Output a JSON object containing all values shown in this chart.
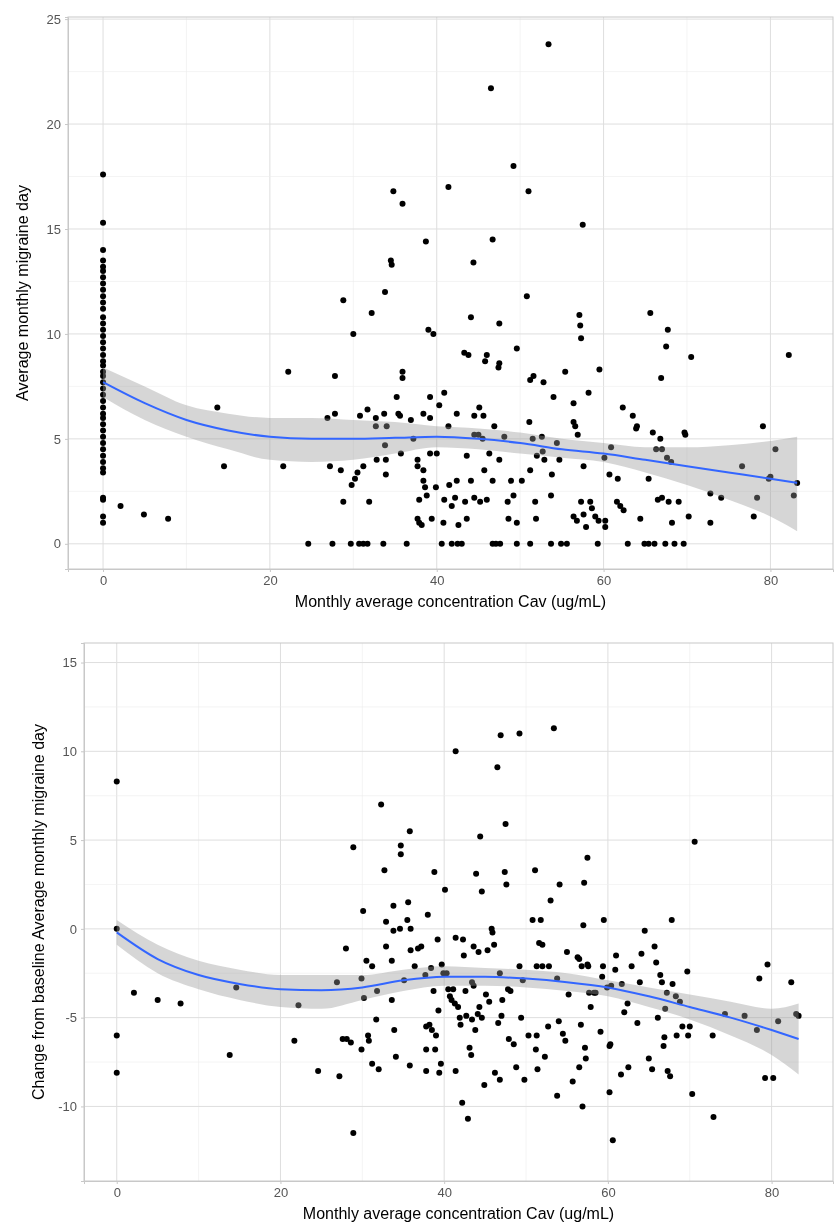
{
  "chart_data": [
    {
      "type": "scatter",
      "xlabel": "Monthly average concentration Cav (ug/mL)",
      "ylabel": "Average monthly migraine day",
      "xlim": [
        -4.2,
        87.5
      ],
      "ylim": [
        -1.2,
        25.1
      ],
      "xticks": [
        0,
        20,
        40,
        60,
        80
      ],
      "yticks": [
        0,
        5,
        10,
        15,
        20,
        25
      ],
      "grid": true,
      "series": [
        {
          "marker": "circle",
          "color": "#000000",
          "x": [
            0,
            0,
            0,
            0,
            0,
            0,
            0,
            0,
            0,
            0,
            0,
            0,
            0,
            0,
            0,
            0,
            0,
            0,
            0,
            0,
            0,
            0,
            0,
            0,
            0,
            0,
            0,
            0,
            0,
            0,
            0,
            0,
            0,
            0,
            0,
            0,
            0,
            0,
            0,
            0,
            0,
            0,
            0,
            2.1,
            4.9,
            7.8,
            13.7,
            14.5,
            21.6,
            22.2,
            24.6,
            26.9,
            27.2,
            27.5,
            27.8,
            27.8,
            28.5,
            28.8,
            28.8,
            29.7,
            29.8,
            30.0,
            30.2,
            30.5,
            30.7,
            31.2,
            31.7,
            30.8,
            31.2,
            31.7,
            31.9,
            32.2,
            32.7,
            32.7,
            32.8,
            33.6,
            33.8,
            33.7,
            33.8,
            33.9,
            33.9,
            34.0,
            34.5,
            34.6,
            34.8,
            35.2,
            35.4,
            35.6,
            35.7,
            35.9,
            35.9,
            35.9,
            36.4,
            36.9,
            37.2,
            37.7,
            37.7,
            37.9,
            37.7,
            37.9,
            38.2,
            38.4,
            38.4,
            38.4,
            38.6,
            38.8,
            38.7,
            39.0,
            39.6,
            39.2,
            39.2,
            39.2,
            39.4,
            39.9,
            40.0,
            40.3,
            40.6,
            40.8,
            40.9,
            40.9,
            41.4,
            41.4,
            41.5,
            41.8,
            41.8,
            42.2,
            42.4,
            42.4,
            42.5,
            42.6,
            43.0,
            43.3,
            43.4,
            43.6,
            43.6,
            43.8,
            44.1,
            44.1,
            44.4,
            44.5,
            44.5,
            44.5,
            45.0,
            45.1,
            45.2,
            45.5,
            45.6,
            45.7,
            45.8,
            46.0,
            46.0,
            46.3,
            46.5,
            46.7,
            46.7,
            46.7,
            46.9,
            47.1,
            47.4,
            47.5,
            47.5,
            47.5,
            47.6,
            48.1,
            48.5,
            48.6,
            48.9,
            49.2,
            49.2,
            49.6,
            49.6,
            49.6,
            50.2,
            50.8,
            51.0,
            51.1,
            51.2,
            51.2,
            51.2,
            51.6,
            51.5,
            51.8,
            51.9,
            52.0,
            52.6,
            52.7,
            52.8,
            52.9,
            53.4,
            53.7,
            53.7,
            53.8,
            54.0,
            54.4,
            54.7,
            54.9,
            55.4,
            55.6,
            56.4,
            56.4,
            56.4,
            56.6,
            56.8,
            56.9,
            57.1,
            57.2,
            57.3,
            57.3,
            57.5,
            57.6,
            57.6,
            57.9,
            58.2,
            58.4,
            58.6,
            59.0,
            59.3,
            59.4,
            59.5,
            60.1,
            60.2,
            60.2,
            60.7,
            60.9,
            61.6,
            61.7,
            62.0,
            62.3,
            62.4,
            62.9,
            63.5,
            63.9,
            64.0,
            64.4,
            64.9,
            65.4,
            65.4,
            65.6,
            65.9,
            66.1,
            66.3,
            66.5,
            66.8,
            66.9,
            67.0,
            67.0,
            67.4,
            67.5,
            67.6,
            67.7,
            67.8,
            68.1,
            68.2,
            68.5,
            69.0,
            69.6,
            69.7,
            69.8,
            70.2,
            70.5,
            72.8,
            72.8,
            74.1,
            76.6,
            78.0,
            78.4,
            79.1,
            79.8,
            80.0,
            80.6,
            82.2,
            82.8,
            83.2
          ],
          "values": [
            17.6,
            15.3,
            14,
            13.5,
            13.2,
            13,
            12.7,
            12.4,
            12.1,
            11.8,
            11.5,
            11.2,
            10.8,
            10.5,
            10.2,
            9.9,
            9.6,
            9.3,
            9.0,
            8.7,
            8.5,
            8.2,
            8.0,
            7.7,
            7.4,
            7.1,
            6.8,
            6.5,
            6.2,
            6.0,
            5.7,
            5.4,
            5.1,
            4.8,
            4.5,
            4.2,
            3.9,
            3.6,
            3.4,
            2.2,
            2.1,
            1.3,
            1.0,
            1.8,
            1.4,
            1.2,
            6.5,
            3.7,
            3.7,
            8.2,
            0,
            6.0,
            3.7,
            0,
            8.0,
            6.2,
            3.5,
            2.0,
            11.6,
            0,
            2.8,
            10.0,
            3.1,
            3.4,
            0,
            0,
            0,
            6.1,
            3.7,
            6.4,
            2.0,
            11.0,
            6.0,
            5.6,
            4.0,
            0,
            12.0,
            6.2,
            4.7,
            4.0,
            3.3,
            5.6,
            13.5,
            13.3,
            16.8,
            7.0,
            6.2,
            6.1,
            4.3,
            16.2,
            8.2,
            7.9,
            0,
            5.9,
            5.0,
            4.0,
            3.7,
            2.1,
            1.2,
            1.0,
            0.9,
            6.2,
            3.5,
            3.0,
            2.7,
            2.3,
            14.4,
            10.2,
            10.0,
            7.0,
            6.0,
            4.3,
            1.2,
            2.7,
            4.3,
            6.6,
            0,
            1.0,
            7.2,
            2.1,
            17.0,
            5.6,
            2.8,
            0,
            1.8,
            2.2,
            6.2,
            3.0,
            0,
            0.9,
            0,
            9.1,
            2.0,
            1.2,
            4.2,
            9.0,
            10.8,
            3.0,
            13.4,
            6.1,
            5.2,
            2.2,
            5.2,
            6.5,
            2.0,
            5.0,
            6.1,
            3.5,
            8.7,
            9.0,
            2.1,
            4.3,
            21.7,
            0,
            14.5,
            3.0,
            5.6,
            0,
            8.4,
            10.5,
            8.6,
            4.0,
            0,
            5.1,
            2.0,
            1.2,
            3.0,
            18.0,
            2.3,
            1.0,
            0,
            9.3,
            3.0,
            11.8,
            16.8,
            5.8,
            0,
            7.8,
            3.5,
            8.0,
            5.0,
            2.0,
            1.2,
            4.2,
            5.1,
            4.4,
            7.7,
            4.0,
            23.8,
            0,
            2.3,
            3.3,
            7.0,
            4.8,
            4.0,
            0,
            8.2,
            0,
            6.7,
            5.8,
            1.3,
            5.6,
            1.1,
            5.2,
            10.9,
            10.4,
            9.8,
            2.0,
            15.2,
            3.7,
            1.4,
            0.8,
            7.2,
            2.0,
            1.7,
            1.3,
            0,
            1.1,
            8.3,
            4.1,
            1.1,
            0.8,
            3.3,
            4.6,
            2.0,
            3.1,
            1.8,
            6.5,
            1.6,
            0,
            6.1,
            5.5,
            5.6,
            1.2,
            0,
            3.1,
            0,
            11.0,
            5.3,
            0,
            4.5,
            2.1,
            5.0,
            7.9,
            4.5,
            2.2,
            0,
            9.4,
            4.1,
            10.2,
            2.0,
            3.9,
            1.0,
            0,
            2.0,
            0,
            5.3,
            5.2,
            1.3,
            8.9,
            2.4,
            1.0,
            2.2,
            3.7,
            1.3,
            2.2,
            5.6,
            3.1,
            3.2,
            4.5,
            9.0,
            2.3,
            2.9
          ]
        },
        {
          "type": "line",
          "marker": "none",
          "color": "#3366ff",
          "x": [
            0,
            5,
            10,
            15,
            20,
            25,
            30,
            35,
            40,
            45,
            50,
            55,
            60,
            65,
            70,
            75,
            80,
            83.2
          ],
          "values": [
            7.7,
            6.7,
            5.9,
            5.4,
            5.1,
            5.0,
            5.0,
            5.05,
            5.1,
            5.0,
            4.8,
            4.5,
            4.3,
            4.0,
            3.7,
            3.4,
            3.1,
            2.9
          ],
          "lower": [
            7.0,
            5.9,
            5.1,
            4.5,
            4.0,
            3.9,
            4.0,
            4.3,
            4.6,
            4.5,
            4.3,
            4.1,
            3.9,
            3.4,
            2.8,
            2.1,
            1.3,
            0.6
          ],
          "upper": [
            8.4,
            7.5,
            6.6,
            6.2,
            6.0,
            6.0,
            5.9,
            5.8,
            5.6,
            5.5,
            5.3,
            5.0,
            4.8,
            4.6,
            4.6,
            4.7,
            4.9,
            5.1
          ]
        }
      ]
    },
    {
      "type": "scatter",
      "xlabel": "Monthly average concentration Cav (ug/mL)",
      "ylabel": "Change from baseline Average monthly migraine day",
      "xlim": [
        -4.0,
        87.5
      ],
      "ylim": [
        -14.2,
        16.1
      ],
      "xticks": [
        0,
        20,
        40,
        60,
        80
      ],
      "yticks": [
        -10,
        -5,
        0,
        5,
        10,
        15
      ],
      "grid": true,
      "series": [
        {
          "marker": "circle",
          "color": "#000000",
          "x": [
            0,
            0,
            0,
            0,
            2.1,
            5.0,
            7.8,
            13.8,
            14.6,
            21.7,
            22.2,
            24.6,
            26.9,
            27.2,
            27.6,
            28.0,
            28.1,
            28.6,
            28.9,
            28.9,
            29.9,
            29.9,
            30.1,
            30.2,
            30.5,
            30.7,
            30.8,
            31.2,
            31.2,
            31.7,
            31.8,
            32.0,
            32.3,
            32.7,
            32.9,
            32.9,
            33.6,
            33.6,
            33.8,
            33.8,
            33.9,
            34.1,
            34.6,
            34.7,
            34.7,
            35.1,
            35.5,
            35.6,
            35.8,
            35.8,
            35.9,
            35.9,
            36.4,
            36.8,
            37.2,
            37.7,
            37.8,
            37.8,
            37.8,
            38.0,
            38.2,
            38.4,
            38.5,
            38.7,
            38.8,
            38.9,
            39.0,
            39.2,
            39.3,
            39.4,
            39.6,
            39.7,
            39.9,
            40.1,
            40.3,
            40.5,
            40.7,
            40.9,
            41.1,
            41.3,
            41.4,
            41.4,
            41.4,
            41.7,
            41.9,
            42.0,
            42.2,
            42.3,
            42.4,
            42.6,
            42.7,
            42.9,
            43.1,
            43.3,
            43.4,
            43.4,
            43.6,
            43.6,
            43.8,
            43.9,
            44.1,
            44.2,
            44.3,
            44.4,
            44.6,
            44.6,
            44.9,
            45.1,
            45.3,
            45.5,
            45.8,
            45.9,
            46.1,
            46.2,
            46.5,
            46.6,
            46.8,
            46.8,
            46.9,
            47.0,
            47.1,
            47.4,
            47.5,
            47.6,
            47.8,
            47.9,
            48.1,
            48.5,
            48.8,
            49.2,
            49.2,
            49.4,
            49.6,
            49.8,
            50.3,
            50.8,
            51.1,
            51.2,
            51.3,
            51.3,
            51.4,
            51.6,
            51.8,
            52.0,
            52.0,
            52.3,
            52.7,
            52.8,
            53.0,
            53.4,
            53.8,
            53.8,
            54.0,
            54.1,
            54.5,
            54.8,
            55.0,
            55.2,
            55.7,
            56.3,
            56.5,
            56.5,
            56.7,
            56.8,
            56.9,
            57.0,
            57.1,
            57.2,
            57.3,
            57.5,
            57.5,
            57.6,
            57.7,
            57.9,
            58.3,
            58.5,
            59.1,
            59.3,
            59.4,
            59.5,
            59.9,
            60.2,
            60.2,
            60.3,
            60.4,
            60.6,
            60.9,
            61.0,
            61.6,
            61.7,
            62.0,
            62.4,
            62.5,
            62.9,
            63.6,
            63.9,
            64.1,
            64.5,
            65.0,
            65.4,
            65.7,
            65.9,
            66.1,
            66.4,
            66.6,
            66.8,
            66.9,
            67.0,
            67.2,
            67.3,
            67.6,
            67.8,
            67.9,
            68.3,
            68.4,
            68.8,
            69.1,
            69.7,
            69.8,
            70.0,
            70.3,
            70.6,
            72.8,
            72.9,
            74.3,
            76.7,
            78.2,
            78.5,
            79.2,
            79.5,
            80.2,
            80.8,
            82.4,
            83.0,
            83.3
          ],
          "values": [
            8.3,
            0,
            -6.0,
            -8.1,
            -3.6,
            -4.0,
            -4.2,
            -7.1,
            -3.3,
            -6.3,
            -4.3,
            -8.0,
            -3.0,
            -8.3,
            -6.2,
            -1.1,
            -6.2,
            -6.4,
            4.6,
            -11.5,
            -2.8,
            -6.8,
            1.0,
            -3.9,
            -1.8,
            -6.0,
            -6.3,
            -2.1,
            -7.6,
            -5.1,
            -3.5,
            -7.9,
            7.0,
            3.3,
            0.4,
            -1.0,
            -1.8,
            -4.0,
            1.3,
            -0.1,
            -5.7,
            -7.2,
            0.0,
            4.7,
            4.2,
            -2.9,
            0.5,
            1.5,
            5.5,
            -7.7,
            0.0,
            -1.2,
            -2.1,
            -1.1,
            -1.0,
            -2.6,
            -5.5,
            -6.8,
            -8.0,
            0.8,
            -5.4,
            -2.2,
            -5.7,
            -3.5,
            3.2,
            -6.8,
            -6.0,
            -0.6,
            -4.6,
            -8.1,
            -7.6,
            -2.0,
            -2.5,
            2.2,
            -2.5,
            -3.4,
            -3.8,
            -4.0,
            -3.4,
            -4.2,
            10.0,
            -0.5,
            -8.0,
            -4.4,
            -5.0,
            -5.4,
            -9.8,
            -0.6,
            -1.5,
            -3.5,
            -4.9,
            -10.7,
            -6.7,
            -7.1,
            -3.0,
            -5.1,
            -3.2,
            -1.0,
            -5.7,
            3.1,
            -4.8,
            -1.3,
            -4.4,
            5.2,
            2.1,
            -5.0,
            -8.8,
            -3.7,
            -1.2,
            -4.1,
            0,
            -0.2,
            -0.9,
            -8.1,
            9.1,
            -5.3,
            -2.5,
            -8.5,
            10.9,
            -4.9,
            -4.0,
            3.2,
            5.9,
            2.5,
            -3.4,
            -6.2,
            -3.5,
            -6.5,
            -7.8,
            11.0,
            -2.1,
            -5.0,
            -2.9,
            -8.5,
            -6.0,
            0.5,
            3.3,
            -6.8,
            -2.1,
            -6.0,
            -7.9,
            -0.8,
            0.5,
            -0.9,
            -2.1,
            -7.2,
            -5.5,
            -2.1,
            1.6,
            11.3,
            -9.4,
            -2.8,
            -5.2,
            2.5,
            -5.9,
            -6.3,
            -1.3,
            -3.7,
            -8.6,
            -1.6,
            -1.7,
            -7.8,
            -5.4,
            -2.1,
            -10.0,
            0.2,
            2.6,
            -6.7,
            -7.3,
            4.0,
            -2.0,
            -2.1,
            -3.6,
            -4.4,
            -3.6,
            -3.6,
            -5.8,
            -2.7,
            -2.1,
            0.5,
            -3.3,
            -9.2,
            -6.6,
            -6.5,
            -3.2,
            -11.9,
            -2.3,
            -1.5,
            -8.2,
            -3.1,
            -4.7,
            -4.2,
            -7.8,
            -2.1,
            -5.3,
            -3.0,
            -1.4,
            -0.1,
            -7.3,
            -7.9,
            -1.0,
            -1.9,
            -5.0,
            -2.6,
            -3.0,
            -6.6,
            -6.1,
            -4.5,
            -3.6,
            -8.0,
            -8.3,
            0.5,
            -3.1,
            -3.8,
            -6.0,
            -4.1,
            -5.5,
            -2.4,
            -6.0,
            -5.5,
            -9.3,
            4.9,
            -6.0,
            -10.6,
            -4.8,
            -4.9,
            -5.7,
            -2.8,
            -8.4,
            -2.0,
            -8.4,
            -5.2,
            -3.0,
            -4.8,
            -4.9
          ]
        },
        {
          "type": "line",
          "marker": "none",
          "color": "#3366ff",
          "x": [
            0,
            5,
            10,
            15,
            20,
            25,
            30,
            35,
            40,
            45,
            50,
            55,
            60,
            65,
            70,
            75,
            80,
            83.3
          ],
          "values": [
            -0.2,
            -1.7,
            -2.6,
            -3.1,
            -3.4,
            -3.45,
            -3.3,
            -2.9,
            -2.7,
            -2.7,
            -2.8,
            -3.0,
            -3.3,
            -3.8,
            -4.4,
            -5.0,
            -5.7,
            -6.2
          ],
          "lower": [
            -0.9,
            -2.5,
            -3.4,
            -4.0,
            -4.4,
            -4.5,
            -4.0,
            -3.5,
            -3.2,
            -3.2,
            -3.3,
            -3.5,
            -3.8,
            -4.4,
            -5.1,
            -6.0,
            -7.1,
            -8.2
          ],
          "upper": [
            0.5,
            -0.9,
            -1.8,
            -2.3,
            -2.6,
            -2.6,
            -2.6,
            -2.3,
            -2.1,
            -2.2,
            -2.3,
            -2.5,
            -2.9,
            -3.3,
            -3.7,
            -4.1,
            -4.5,
            -4.2
          ]
        }
      ]
    }
  ]
}
